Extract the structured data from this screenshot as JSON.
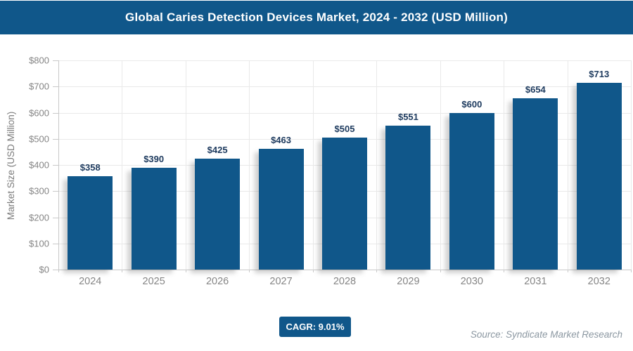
{
  "title_bar": {
    "title": "Global Caries Detection Devices Market, 2024 - 2032 (USD Million)"
  },
  "chart_data": {
    "type": "bar",
    "title": "Global Caries Detection Devices Market, 2024 - 2032 (USD Million)",
    "categories": [
      "2024",
      "2025",
      "2026",
      "2027",
      "2028",
      "2029",
      "2030",
      "2031",
      "2032"
    ],
    "values": [
      358,
      390,
      425,
      463,
      505,
      551,
      600,
      654,
      713
    ],
    "value_prefix": "$",
    "xlabel": "",
    "ylabel": "Market Size (USD Million)",
    "ylim": [
      0,
      800
    ],
    "ytick_step": 100,
    "ytick_prefix": "$",
    "grid": "horizontal and vertical light gray gridlines",
    "legend": "none"
  },
  "footer": {
    "cagr_label": "CAGR: 9.01%",
    "source": "Source: Syndicate Market Research"
  },
  "colors": {
    "accent_blue": "#10578a",
    "bar_fill": "#10578a",
    "value_label_text": "#1d3a5e",
    "axis_text": "#858585",
    "gridline": "#e9e9e9",
    "axis_line": "#c9c9c9",
    "source_text": "#8b97a1",
    "title_text": "#ffffff"
  }
}
